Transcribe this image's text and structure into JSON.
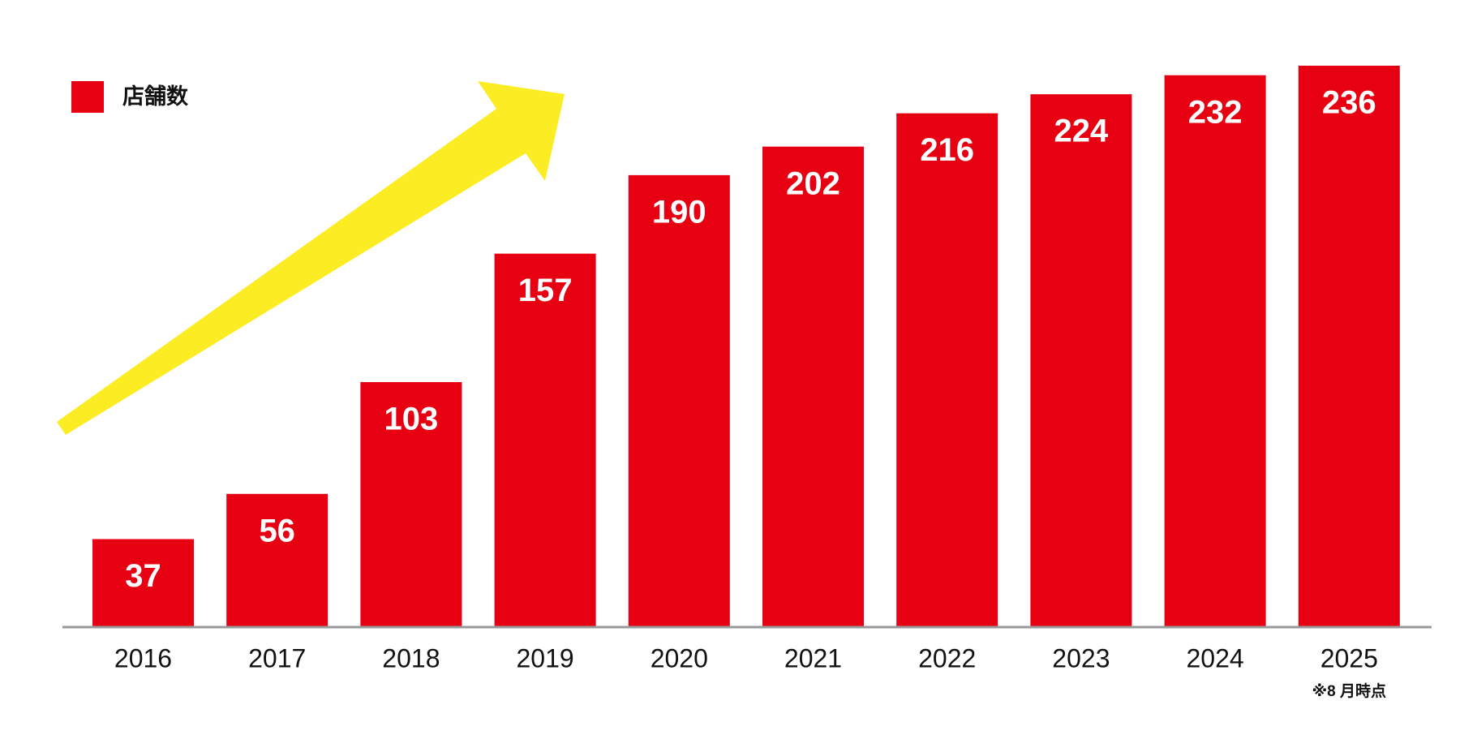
{
  "chart_data": {
    "type": "bar",
    "categories": [
      "2016",
      "2017",
      "2018",
      "2019",
      "2020",
      "2021",
      "2022",
      "2023",
      "2024",
      "2025"
    ],
    "series": [
      {
        "name": "店舗数",
        "color": "#e60012",
        "values": [
          37,
          56,
          103,
          157,
          190,
          202,
          216,
          224,
          232,
          236
        ]
      }
    ],
    "annotation": "※8 月時点"
  }
}
